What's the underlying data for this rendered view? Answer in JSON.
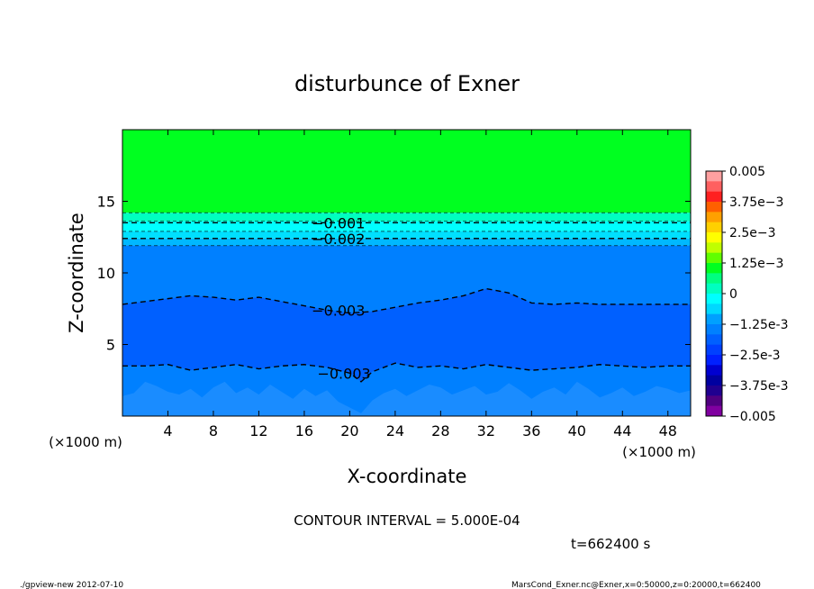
{
  "chart_data": {
    "type": "heatmap",
    "title": "disturbunce of Exner",
    "xlabel": "X-coordinate",
    "ylabel": "Z-coordinate",
    "x_unit": "(×1000 m)",
    "y_unit": "(×1000 m)",
    "xlim": [
      0,
      50
    ],
    "ylim": [
      0,
      20
    ],
    "x_ticks": [
      4,
      8,
      12,
      16,
      20,
      24,
      28,
      32,
      36,
      40,
      44,
      48
    ],
    "y_ticks": [
      5,
      10,
      15
    ],
    "colorbar": {
      "range": [
        -0.005,
        0.005
      ],
      "labels": [
        "0.005",
        "3.75e-3",
        "2.5e-3",
        "1.25e-3",
        "0",
        "-1.25e-3",
        "-2.5e-3",
        "-3.75e-3",
        "-0.005"
      ],
      "colors": [
        "#ffa0a0",
        "#ff6060",
        "#ff2020",
        "#ff6000",
        "#ffa000",
        "#ffd000",
        "#ffff00",
        "#c0ff00",
        "#60ff00",
        "#00ff20",
        "#00ff80",
        "#00ffc0",
        "#00ffff",
        "#00d8ff",
        "#00a0ff",
        "#0080ff",
        "#0060ff",
        "#0040ff",
        "#0020ff",
        "#0000d0",
        "#0000a0",
        "#200090",
        "#500080",
        "#8000a0"
      ]
    },
    "bands": [
      {
        "zmin": 14.2,
        "zmax": 20,
        "value": 0.0,
        "color": "#00ff20"
      },
      {
        "zmin": 13.6,
        "zmax": 14.2,
        "value": -0.00075,
        "color": "#00ffc0"
      },
      {
        "zmin": 12.9,
        "zmax": 13.6,
        "value": -0.00125,
        "color": "#00ffff"
      },
      {
        "zmin": 12.4,
        "zmax": 12.9,
        "value": -0.00175,
        "color": "#00e0ff"
      },
      {
        "zmin": 11.9,
        "zmax": 12.4,
        "value": -0.00225,
        "color": "#00b8ff"
      },
      {
        "zmin": 7.5,
        "zmax": 11.9,
        "value": -0.0028,
        "color": "#0080ff"
      },
      {
        "zmin": 3.5,
        "zmax": 7.5,
        "value": -0.0033,
        "color": "#0060ff"
      },
      {
        "zmin": 0,
        "zmax": 3.5,
        "value": -0.0028,
        "color": "#0080ff"
      }
    ],
    "contours": [
      {
        "level": "-0.001",
        "z": 13.5,
        "label": "−0.001",
        "label_x": 19
      },
      {
        "level": "-0.002",
        "z": 12.4,
        "label": "−0.002",
        "label_x": 19
      },
      {
        "level": "-0.003",
        "label": "−0.003",
        "label_x": 19,
        "x": [
          0,
          2,
          4,
          6,
          8,
          10,
          12,
          14,
          16,
          18,
          20,
          22,
          24,
          26,
          28,
          30,
          32,
          34,
          36,
          38,
          40,
          42,
          44,
          46,
          48,
          50
        ],
        "z": [
          7.8,
          8.0,
          8.2,
          8.4,
          8.3,
          8.1,
          8.3,
          8.0,
          7.7,
          7.4,
          7.2,
          7.3,
          7.6,
          7.9,
          8.1,
          8.4,
          8.9,
          8.6,
          7.9,
          7.8,
          7.9,
          7.8,
          7.8,
          7.8,
          7.8,
          7.8
        ]
      },
      {
        "level": "-0.003",
        "label": "−0.003",
        "label_x": 19.5,
        "x": [
          0,
          2,
          4,
          6,
          8,
          10,
          12,
          14,
          16,
          18,
          20,
          21,
          22,
          24,
          26,
          28,
          30,
          32,
          34,
          36,
          38,
          40,
          42,
          44,
          46,
          48,
          50
        ],
        "z": [
          3.5,
          3.5,
          3.6,
          3.2,
          3.4,
          3.6,
          3.3,
          3.5,
          3.6,
          3.4,
          3.0,
          2.4,
          3.1,
          3.7,
          3.4,
          3.5,
          3.3,
          3.6,
          3.4,
          3.2,
          3.3,
          3.4,
          3.6,
          3.5,
          3.4,
          3.5,
          3.5
        ]
      }
    ],
    "bottom_patch": {
      "value": -0.0025,
      "color": "#1a8cff",
      "x": [
        0,
        1,
        2,
        3,
        4,
        5,
        6,
        7,
        8,
        9,
        10,
        11,
        12,
        13,
        14,
        15,
        16,
        17,
        18,
        19,
        20,
        21,
        22,
        23,
        24,
        25,
        26,
        27,
        28,
        29,
        30,
        31,
        32,
        33,
        34,
        35,
        36,
        37,
        38,
        39,
        40,
        41,
        42,
        43,
        44,
        45,
        46,
        47,
        48,
        49,
        50
      ],
      "z": [
        1.4,
        1.6,
        2.4,
        2.1,
        1.7,
        1.5,
        1.9,
        1.3,
        2.0,
        2.4,
        1.6,
        2.0,
        1.5,
        2.2,
        1.7,
        1.2,
        1.9,
        1.4,
        1.8,
        1.0,
        0.6,
        0.2,
        1.1,
        1.6,
        1.9,
        1.4,
        1.8,
        2.2,
        2.0,
        1.5,
        1.8,
        2.1,
        1.5,
        1.7,
        2.3,
        1.8,
        1.2,
        1.7,
        2.0,
        1.5,
        2.4,
        1.9,
        1.3,
        1.6,
        2.0,
        1.4,
        1.7,
        2.1,
        1.9,
        1.6,
        1.8
      ]
    }
  },
  "footer": {
    "contour_interval": "CONTOUR INTERVAL = 5.000E-04",
    "time": "t=662400 s",
    "program": "./gpview-new  2012-07-10",
    "source": "MarsCond_Exner.nc@Exner,x=0:50000,z=0:20000,t=662400"
  }
}
